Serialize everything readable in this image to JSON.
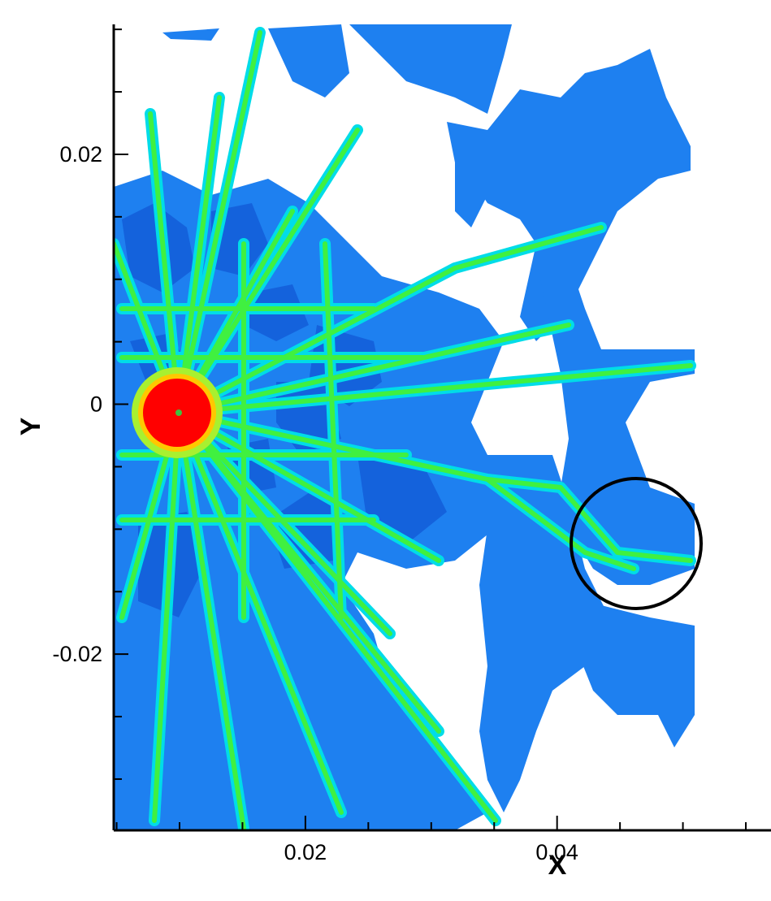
{
  "chart_data": {
    "type": "contour",
    "xlabel": "X",
    "ylabel": "Y",
    "xlim": [
      0.00477,
      0.057
    ],
    "ylim": [
      -0.0341,
      0.0304
    ],
    "xticks": [
      0.02,
      0.04
    ],
    "yticks": [
      0.02,
      0,
      -0.02
    ],
    "xminorticks": [
      0.005,
      0.01,
      0.015,
      0.025,
      0.03,
      0.035,
      0.045,
      0.05,
      0.055
    ],
    "yminorticks": [
      0.03,
      0.025,
      0.015,
      0.01,
      0.005,
      -0.005,
      -0.01,
      -0.015,
      -0.025,
      -0.03
    ]
  }
}
